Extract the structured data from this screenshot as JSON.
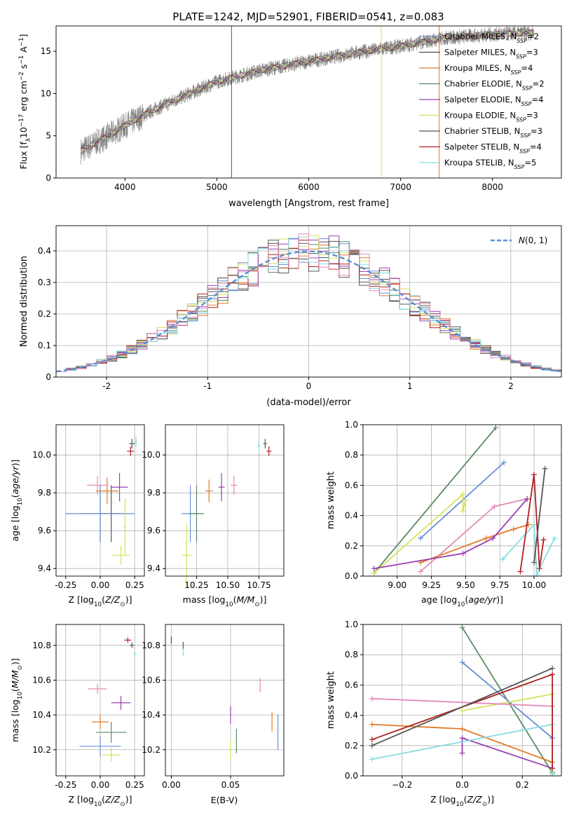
{
  "figure": {
    "title": "PLATE=1242, MJD=52901, FIBERID=0541, z=0.083"
  },
  "colors": {
    "Chabrier MILES": "#6a8fd6",
    "Salpeter MILES": "#4a4a4a",
    "Kroupa MILES": "#e07b28",
    "Chabrier ELODIE": "#5a8a63",
    "Salpeter ELODIE": "#9a3fb3",
    "Kroupa ELODIE": "#d4e25a",
    "Chabrier STELIB": "#555555",
    "Salpeter STELIB": "#b01f1f",
    "Kroupa STELIB": "#88dbe0",
    "pink": "#e58ab8",
    "data": "#808080"
  },
  "chart_data": [
    {
      "type": "line",
      "panel": "spectrum",
      "xlabel": "wavelength [Angstrom, rest frame]",
      "ylabel": "Flux [f_λ 10^-17 erg cm^-2 s^-1 A^-1]",
      "xlim": [
        3250,
        8750
      ],
      "ylim": [
        0,
        18
      ],
      "xticks": [
        4000,
        5000,
        6000,
        7000,
        8000
      ],
      "yticks": [
        0,
        5,
        10,
        15
      ],
      "legend_position": "upper-right",
      "legend": [
        {
          "label": "Chabrier MILES, N_SSP=2",
          "color": "#6a8fd6"
        },
        {
          "label": "Salpeter MILES, N_SSP=3",
          "color": "#4a4a4a"
        },
        {
          "label": "Kroupa MILES, N_SSP=4",
          "color": "#e07b28"
        },
        {
          "label": "Chabrier ELODIE, N_SSP=2",
          "color": "#5a8a63"
        },
        {
          "label": "Salpeter ELODIE, N_SSP=4",
          "color": "#9a3fb3"
        },
        {
          "label": "Kroupa ELODIE, N_SSP=3",
          "color": "#d4e25a"
        },
        {
          "label": "Chabrier STELIB, N_SSP=3",
          "color": "#555555"
        },
        {
          "label": "Salpeter STELIB, N_SSP=4",
          "color": "#b01f1f"
        },
        {
          "label": "Kroupa STELIB, N_SSP=5",
          "color": "#88dbe0"
        }
      ],
      "continuum": [
        [
          3520,
          3.2
        ],
        [
          3700,
          4.3
        ],
        [
          3900,
          5.5
        ],
        [
          4000,
          6.2
        ],
        [
          4300,
          8.0
        ],
        [
          4600,
          9.5
        ],
        [
          5000,
          11.4
        ],
        [
          5500,
          12.8
        ],
        [
          6000,
          13.8
        ],
        [
          6500,
          14.8
        ],
        [
          7000,
          15.6
        ],
        [
          7500,
          16.6
        ],
        [
          8000,
          17.0
        ],
        [
          8450,
          17.2
        ]
      ]
    },
    {
      "type": "line",
      "panel": "residual-histogram",
      "xlabel": "(data-model)/error",
      "ylabel": "Normed distribution",
      "xlim": [
        -2.5,
        2.5
      ],
      "ylim": [
        0,
        0.48
      ],
      "xticks": [
        -2,
        -1,
        0,
        1,
        2
      ],
      "yticks": [
        0.0,
        0.1,
        0.2,
        0.3,
        0.4
      ],
      "legend": [
        {
          "label": "N(0,1)",
          "color": "#5b8fd6"
        }
      ],
      "legend_position": "upper-right"
    },
    {
      "type": "scatter",
      "panel": "age-vs-Z",
      "xlabel": "Z [log10(Z/Z☉)]",
      "ylabel": "age [log10(age/yr)]",
      "xlim": [
        -0.32,
        0.32
      ],
      "ylim": [
        9.36,
        10.16
      ],
      "xticks": [
        "-0.25",
        "0.00",
        "0.25"
      ],
      "yticks": [
        "9.4",
        "9.6",
        "9.8",
        "10.0"
      ],
      "points": [
        {
          "x": 0.0,
          "y": 9.69,
          "xerr": 0.3,
          "yerr": 0.3,
          "color": "#5a8a63"
        },
        {
          "x": 0.08,
          "y": 9.69,
          "xerr": 0.22,
          "yerr": 0.3,
          "color": "#555555"
        },
        {
          "x": 0.0,
          "y": 9.69,
          "xerr": 0.5,
          "yerr": 0.3,
          "color": "#6a8fd6"
        },
        {
          "x": 0.05,
          "y": 9.81,
          "xerr": 0.16,
          "yerr": 0.14,
          "color": "#e07b28"
        },
        {
          "x": 0.14,
          "y": 9.83,
          "xerr": 0.12,
          "yerr": 0.15,
          "color": "#9a3fb3"
        },
        {
          "x": -0.02,
          "y": 9.84,
          "xerr": 0.15,
          "yerr": 0.1,
          "color": "#e58ab8"
        },
        {
          "x": 0.15,
          "y": 9.47,
          "xerr": 0.13,
          "yerr": 0.1,
          "color": "#d4e25a"
        },
        {
          "x": 0.18,
          "y": 9.62,
          "xerr": 0.02,
          "yerr": 0.3,
          "color": "#d4e25a"
        },
        {
          "x": 0.23,
          "y": 10.06,
          "xerr": 0.04,
          "yerr": 0.05,
          "color": "#555555"
        },
        {
          "x": 0.22,
          "y": 10.02,
          "xerr": 0.05,
          "yerr": 0.05,
          "color": "#b01f1f"
        },
        {
          "x": 0.26,
          "y": 10.07,
          "xerr": 0.02,
          "yerr": 0.05,
          "color": "#88dbe0"
        }
      ]
    },
    {
      "type": "scatter",
      "panel": "age-vs-mass",
      "xlabel": "mass [log10(M/M☉)]",
      "xlim": [
        10.0,
        10.95
      ],
      "ylim": [
        9.36,
        10.16
      ],
      "xticks": [
        "10.25",
        "10.50",
        "10.75"
      ],
      "yticks": [
        "9.4",
        "9.6",
        "9.8",
        "10.0"
      ],
      "points": [
        {
          "x": 10.2,
          "y": 9.69,
          "xerr": 0.14,
          "yerr": 0.3,
          "color": "#6a8fd6"
        },
        {
          "x": 10.25,
          "y": 9.69,
          "xerr": 0.12,
          "yerr": 0.3,
          "color": "#5a8a63"
        },
        {
          "x": 10.17,
          "y": 9.47,
          "xerr": 0.08,
          "yerr": 0.33,
          "color": "#d4e25a"
        },
        {
          "x": 10.35,
          "y": 9.81,
          "xerr": 0.06,
          "yerr": 0.12,
          "color": "#e07b28"
        },
        {
          "x": 10.45,
          "y": 9.83,
          "xerr": 0.05,
          "yerr": 0.15,
          "color": "#9a3fb3"
        },
        {
          "x": 10.55,
          "y": 9.84,
          "xerr": 0.05,
          "yerr": 0.1,
          "color": "#e58ab8"
        },
        {
          "x": 10.8,
          "y": 10.06,
          "xerr": 0.03,
          "yerr": 0.05,
          "color": "#555555"
        },
        {
          "x": 10.83,
          "y": 10.02,
          "xerr": 0.04,
          "yerr": 0.05,
          "color": "#b01f1f"
        },
        {
          "x": 10.75,
          "y": 10.05,
          "xerr": 0.02,
          "yerr": 0.05,
          "color": "#88dbe0"
        }
      ]
    },
    {
      "type": "line",
      "panel": "mass-weight-vs-age",
      "xlabel": "age [log10(age/yr)]",
      "ylabel": "mass weight",
      "xlim": [
        8.75,
        10.2
      ],
      "ylim": [
        0,
        1.0
      ],
      "xticks": [
        "9.00",
        "9.25",
        "9.50",
        "9.75",
        "10.00"
      ],
      "yticks": [
        "0.0",
        "0.2",
        "0.4",
        "0.6",
        "0.8",
        "1.0"
      ],
      "series": [
        {
          "color": "#5a8a63",
          "x": [
            8.83,
            9.72
          ],
          "y": [
            0.02,
            0.98
          ]
        },
        {
          "color": "#6a8fd6",
          "x": [
            9.17,
            9.78
          ],
          "y": [
            0.25,
            0.75
          ]
        },
        {
          "color": "#d4e25a",
          "x": [
            8.83,
            9.48,
            9.48,
            9.5
          ],
          "y": [
            0.02,
            0.54,
            0.43,
            0.5
          ]
        },
        {
          "color": "#e58ab8",
          "x": [
            9.17,
            9.71,
            9.95
          ],
          "y": [
            0.03,
            0.46,
            0.51
          ]
        },
        {
          "color": "#e07b28",
          "x": [
            9.17,
            9.65,
            9.85,
            9.96
          ],
          "y": [
            0.09,
            0.25,
            0.31,
            0.34
          ]
        },
        {
          "color": "#9a3fb3",
          "x": [
            8.83,
            9.48,
            9.7,
            9.95
          ],
          "y": [
            0.05,
            0.15,
            0.25,
            0.51
          ]
        },
        {
          "color": "#88dbe0",
          "x": [
            9.77,
            10.0,
            10.02,
            10.15
          ],
          "y": [
            0.11,
            0.34,
            0.01,
            0.25
          ]
        },
        {
          "color": "#b01f1f",
          "x": [
            9.9,
            10.0,
            10.04,
            10.07
          ],
          "y": [
            0.03,
            0.67,
            0.05,
            0.24
          ]
        },
        {
          "color": "#555555",
          "x": [
            10.0,
            10.08
          ],
          "y": [
            0.09,
            0.71
          ]
        }
      ]
    },
    {
      "type": "scatter",
      "panel": "mass-vs-Z",
      "xlabel": "Z [log10(Z/Z☉)]",
      "ylabel": "mass [log10(M/M☉)]",
      "xlim": [
        -0.32,
        0.32
      ],
      "ylim": [
        10.05,
        10.92
      ],
      "xticks": [
        "-0.25",
        "0.00",
        "0.25"
      ],
      "yticks": [
        "10.2",
        "10.4",
        "10.6",
        "10.8"
      ],
      "points": [
        {
          "x": 0.0,
          "y": 10.22,
          "xerr": 0.3,
          "yerr": 0.12,
          "color": "#6a8fd6"
        },
        {
          "x": 0.08,
          "y": 10.3,
          "xerr": 0.22,
          "yerr": 0.12,
          "color": "#5a8a63"
        },
        {
          "x": 0.0,
          "y": 10.36,
          "xerr": 0.12,
          "yerr": 0.08,
          "color": "#e07b28"
        },
        {
          "x": 0.15,
          "y": 10.47,
          "xerr": 0.14,
          "yerr": 0.08,
          "color": "#9a3fb3"
        },
        {
          "x": -0.02,
          "y": 10.55,
          "xerr": 0.14,
          "yerr": 0.06,
          "color": "#e58ab8"
        },
        {
          "x": 0.08,
          "y": 10.17,
          "xerr": 0.13,
          "yerr": 0.08,
          "color": "#d4e25a"
        },
        {
          "x": 0.23,
          "y": 10.8,
          "xerr": 0.03,
          "yerr": 0.03,
          "color": "#555555"
        },
        {
          "x": 0.2,
          "y": 10.83,
          "xerr": 0.05,
          "yerr": 0.03,
          "color": "#b01f1f"
        },
        {
          "x": 0.25,
          "y": 10.75,
          "xerr": 0.02,
          "yerr": 0.03,
          "color": "#88dbe0"
        }
      ]
    },
    {
      "type": "scatter",
      "panel": "mass-vs-EBV",
      "xlabel": "E(B-V)",
      "xlim": [
        -0.005,
        0.095
      ],
      "ylim": [
        10.05,
        10.92
      ],
      "xticks": [
        "0.00",
        "0.05"
      ],
      "yticks": [
        "10.2",
        "10.4",
        "10.6",
        "10.8"
      ],
      "points": [
        {
          "x": 0.05,
          "y": 10.2,
          "xerr": 0.0,
          "yerr": 0.12,
          "color": "#d4e25a"
        },
        {
          "x": 0.05,
          "y": 10.4,
          "xerr": 0.0,
          "yerr": 0.1,
          "color": "#9a3fb3"
        },
        {
          "x": 0.055,
          "y": 10.25,
          "xerr": 0.0,
          "yerr": 0.14,
          "color": "#5a8a63"
        },
        {
          "x": 0.075,
          "y": 10.57,
          "xerr": 0.0,
          "yerr": 0.08,
          "color": "#e58ab8"
        },
        {
          "x": 0.085,
          "y": 10.36,
          "xerr": 0.0,
          "yerr": 0.11,
          "color": "#e07b28"
        },
        {
          "x": 0.09,
          "y": 10.3,
          "xerr": 0.0,
          "yerr": 0.2,
          "color": "#6a8fd6"
        },
        {
          "x": 0.0,
          "y": 10.83,
          "xerr": 0.0,
          "yerr": 0.04,
          "color": "#b01f1f"
        },
        {
          "x": 0.01,
          "y": 10.8,
          "xerr": 0.0,
          "yerr": 0.04,
          "color": "#555555"
        },
        {
          "x": 0.01,
          "y": 10.76,
          "xerr": 0.0,
          "yerr": 0.04,
          "color": "#88dbe0"
        }
      ]
    },
    {
      "type": "line",
      "panel": "mass-weight-vs-Z",
      "xlabel": "Z [log10(Z/Z☉)]",
      "ylabel": "mass weight",
      "xlim": [
        -0.33,
        0.33
      ],
      "ylim": [
        0,
        1.0
      ],
      "xticks": [
        "−0.2",
        "0.0",
        "0.2"
      ],
      "yticks": [
        "0.0",
        "0.2",
        "0.4",
        "0.6",
        "0.8",
        "1.0"
      ],
      "series": [
        {
          "color": "#5a8a63",
          "x": [
            0.0,
            0.3
          ],
          "y": [
            0.98,
            0.02
          ]
        },
        {
          "color": "#6a8fd6",
          "x": [
            0.0,
            0.3
          ],
          "y": [
            0.75,
            0.25
          ]
        },
        {
          "color": "#d4e25a",
          "x": [
            0.0,
            0.3,
            0.3
          ],
          "y": [
            0.43,
            0.54,
            0.03
          ]
        },
        {
          "color": "#e58ab8",
          "x": [
            -0.3,
            0.3
          ],
          "y": [
            0.51,
            0.46
          ]
        },
        {
          "color": "#e07b28",
          "x": [
            -0.3,
            0.0,
            0.3,
            0.3
          ],
          "y": [
            0.34,
            0.31,
            0.09,
            0.09
          ]
        },
        {
          "color": "#9a3fb3",
          "x": [
            0.0,
            0.0,
            0.3
          ],
          "y": [
            0.15,
            0.25,
            0.05
          ]
        },
        {
          "color": "#88dbe0",
          "x": [
            -0.3,
            0.3,
            0.3
          ],
          "y": [
            0.11,
            0.34,
            0.01
          ]
        },
        {
          "color": "#b01f1f",
          "x": [
            -0.3,
            0.3,
            0.3
          ],
          "y": [
            0.24,
            0.67,
            0.05
          ]
        },
        {
          "color": "#555555",
          "x": [
            -0.3,
            0.3
          ],
          "y": [
            0.2,
            0.71
          ]
        }
      ]
    }
  ]
}
